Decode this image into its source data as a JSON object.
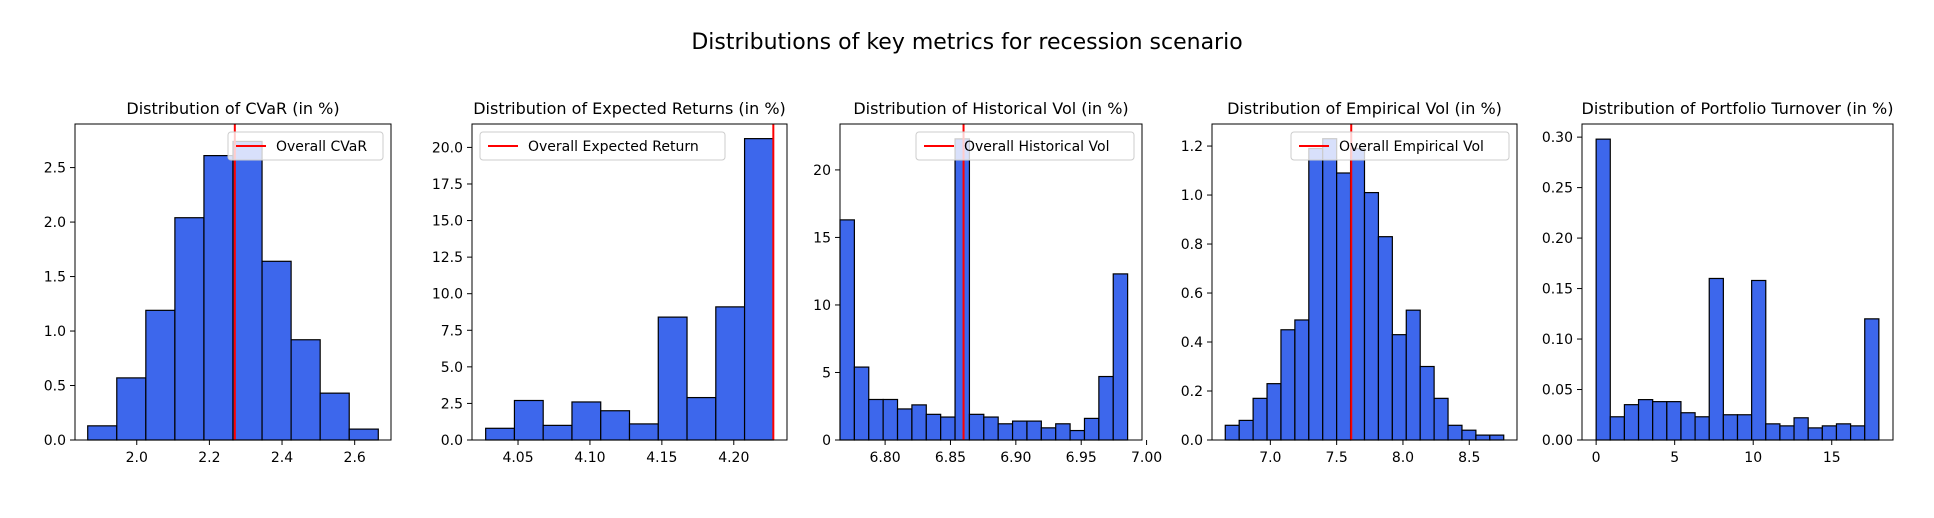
{
  "figure": {
    "suptitle": "Distributions of key metrics for recession  scenario"
  },
  "colors": {
    "bar": "#3d67ec",
    "edge": "#000000",
    "overall_line": "#ff0000"
  },
  "chart_data": [
    {
      "type": "bar",
      "title": "Distribution of CVaR (in %)",
      "legend": "Overall CVaR",
      "legend_position": "top-right",
      "bin_edges": [
        1.865,
        1.945,
        2.025,
        2.105,
        2.185,
        2.265,
        2.345,
        2.425,
        2.505,
        2.585,
        2.665
      ],
      "values": [
        0.13,
        0.57,
        1.19,
        2.04,
        2.61,
        2.74,
        1.64,
        0.92,
        0.43,
        0.1
      ],
      "vline": 2.27,
      "xlim": [
        1.83,
        2.7
      ],
      "ylim": [
        0,
        2.9
      ],
      "xticks": [
        2.0,
        2.2,
        2.4,
        2.6
      ],
      "xtick_labels": [
        "2.0",
        "2.2",
        "2.4",
        "2.6"
      ],
      "yticks": [
        0,
        0.5,
        1.0,
        1.5,
        2.0,
        2.5
      ],
      "ytick_labels": [
        "0.0",
        "0.5",
        "1.0",
        "1.5",
        "2.0",
        "2.5"
      ]
    },
    {
      "type": "bar",
      "title": "Distribution of Expected Returns (in %)",
      "legend": "Overall Expected Return",
      "legend_position": "top-left",
      "bin_edges": [
        4.0275,
        4.0475,
        4.0675,
        4.0875,
        4.1075,
        4.1275,
        4.1475,
        4.1675,
        4.1875,
        4.2075,
        4.2275
      ],
      "values": [
        0.8,
        2.7,
        1.0,
        2.6,
        2.0,
        1.1,
        8.4,
        2.9,
        9.1,
        20.6
      ],
      "vline": 4.2275,
      "xlim": [
        4.018,
        4.237
      ],
      "ylim": [
        0,
        21.6
      ],
      "xticks": [
        4.05,
        4.1,
        4.15,
        4.2
      ],
      "xtick_labels": [
        "4.05",
        "4.10",
        "4.15",
        "4.20"
      ],
      "yticks": [
        0,
        2.5,
        5.0,
        7.5,
        10.0,
        12.5,
        15.0,
        17.5,
        20.0
      ],
      "ytick_labels": [
        "0.0",
        "2.5",
        "5.0",
        "7.5",
        "10.0",
        "12.5",
        "15.0",
        "17.5",
        "20.0"
      ]
    },
    {
      "type": "bar",
      "title": "Distribution of Historical Vol (in %)",
      "legend": "Overall Historical Vol",
      "legend_position": "top-right",
      "bin_edges": [
        6.7655,
        6.7765,
        6.7875,
        6.7985,
        6.8095,
        6.8205,
        6.8315,
        6.8425,
        6.8535,
        6.8645,
        6.8755,
        6.8865,
        6.8975,
        6.9085,
        6.9195,
        6.9305,
        6.9415,
        6.9525,
        6.9635,
        6.9745,
        6.9855
      ],
      "values": [
        16.3,
        5.4,
        3.0,
        3.0,
        2.3,
        2.6,
        1.9,
        1.7,
        22.3,
        1.9,
        1.7,
        1.2,
        1.4,
        1.4,
        0.9,
        1.2,
        0.7,
        1.6,
        4.7,
        12.3
      ],
      "vline": 6.86,
      "xlim": [
        6.7655,
        6.9965
      ],
      "ylim": [
        0,
        23.4
      ],
      "xticks": [
        6.8,
        6.85,
        6.9,
        6.95,
        7.0
      ],
      "xtick_labels": [
        "6.80",
        "6.85",
        "6.90",
        "6.95",
        "7.00"
      ],
      "yticks": [
        0,
        5,
        10,
        15,
        20
      ],
      "ytick_labels": [
        "0",
        "5",
        "10",
        "15",
        "20"
      ]
    },
    {
      "type": "bar",
      "title": "Distribution of Empirical Vol (in %)",
      "legend": "Overall Empirical Vol",
      "legend_position": "top-right",
      "bin_edges": [
        6.66,
        6.765,
        6.87,
        6.975,
        7.08,
        7.185,
        7.29,
        7.395,
        7.5,
        7.605,
        7.71,
        7.815,
        7.92,
        8.025,
        8.13,
        8.235,
        8.34,
        8.445,
        8.55,
        8.655,
        8.76
      ],
      "values": [
        0.06,
        0.08,
        0.17,
        0.23,
        0.45,
        0.49,
        1.19,
        1.23,
        1.09,
        1.19,
        1.01,
        0.83,
        0.43,
        0.53,
        0.3,
        0.17,
        0.06,
        0.04,
        0.02,
        0.02
      ],
      "vline": 7.61,
      "xlim": [
        6.56,
        8.86
      ],
      "ylim": [
        0,
        1.29
      ],
      "xticks": [
        7.0,
        7.5,
        8.0,
        8.5
      ],
      "xtick_labels": [
        "7.0",
        "7.5",
        "8.0",
        "8.5"
      ],
      "yticks": [
        0,
        0.2,
        0.4,
        0.6,
        0.8,
        1.0,
        1.2
      ],
      "ytick_labels": [
        "0.0",
        "0.2",
        "0.4",
        "0.6",
        "0.8",
        "1.0",
        "1.2"
      ]
    },
    {
      "type": "bar",
      "title": "Distribution of Portfolio Turnover (in %)",
      "legend": "",
      "bin_edges": [
        0,
        0.9,
        1.8,
        2.7,
        3.6,
        4.5,
        5.4,
        6.3,
        7.2,
        8.1,
        9.0,
        9.9,
        10.8,
        11.7,
        12.6,
        13.5,
        14.4,
        15.3,
        16.2,
        17.1,
        18.0
      ],
      "values": [
        0.298,
        0.023,
        0.035,
        0.04,
        0.038,
        0.038,
        0.027,
        0.023,
        0.16,
        0.025,
        0.025,
        0.158,
        0.016,
        0.014,
        0.022,
        0.012,
        0.014,
        0.016,
        0.014,
        0.12
      ],
      "vline": null,
      "xlim": [
        -0.9,
        18.9
      ],
      "ylim": [
        0,
        0.313
      ],
      "xticks": [
        0,
        5,
        10,
        15
      ],
      "xtick_labels": [
        "0",
        "5",
        "10",
        "15"
      ],
      "yticks": [
        0,
        0.05,
        0.1,
        0.15,
        0.2,
        0.25,
        0.3
      ],
      "ytick_labels": [
        "0.00",
        "0.05",
        "0.10",
        "0.15",
        "0.20",
        "0.25",
        "0.30"
      ]
    }
  ]
}
